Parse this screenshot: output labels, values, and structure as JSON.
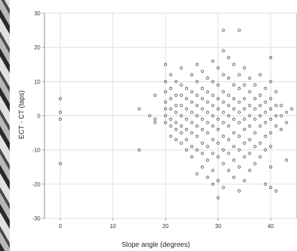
{
  "chart_data": {
    "type": "scatter",
    "title": "",
    "xlabel": "Slope angle (degrees)",
    "ylabel": "ECT - CT (taps)",
    "xlim": [
      -3,
      45
    ],
    "ylim": [
      -30,
      30
    ],
    "x_ticks": [
      "0",
      "10",
      "20",
      "30",
      "40"
    ],
    "y_ticks": [
      "-30",
      "-20",
      "-10",
      "0",
      "10",
      "20",
      "30"
    ],
    "grid": true,
    "marker": "hollow-circle",
    "marker_color": "#555555",
    "points": [
      [
        0,
        5
      ],
      [
        0,
        1
      ],
      [
        0,
        -1
      ],
      [
        0,
        -14
      ],
      [
        15,
        2
      ],
      [
        15,
        -10
      ],
      [
        17,
        0
      ],
      [
        18,
        6
      ],
      [
        18,
        -1
      ],
      [
        18,
        -2
      ],
      [
        20,
        15
      ],
      [
        20,
        10
      ],
      [
        20,
        7
      ],
      [
        20,
        4
      ],
      [
        20,
        2
      ],
      [
        20,
        0
      ],
      [
        20,
        -2
      ],
      [
        21,
        12
      ],
      [
        21,
        8
      ],
      [
        21,
        5
      ],
      [
        21,
        2
      ],
      [
        21,
        -1
      ],
      [
        21,
        -3
      ],
      [
        21,
        -6
      ],
      [
        22,
        10
      ],
      [
        22,
        6
      ],
      [
        22,
        3
      ],
      [
        22,
        1
      ],
      [
        22,
        -2
      ],
      [
        22,
        -4
      ],
      [
        22,
        -7
      ],
      [
        23,
        14
      ],
      [
        23,
        9
      ],
      [
        23,
        6
      ],
      [
        23,
        3
      ],
      [
        23,
        0
      ],
      [
        23,
        -3
      ],
      [
        23,
        -5
      ],
      [
        23,
        -8
      ],
      [
        24,
        8
      ],
      [
        24,
        5
      ],
      [
        24,
        2
      ],
      [
        24,
        -1
      ],
      [
        24,
        -4
      ],
      [
        24,
        -7
      ],
      [
        24,
        -10
      ],
      [
        25,
        12
      ],
      [
        25,
        7
      ],
      [
        25,
        4
      ],
      [
        25,
        1
      ],
      [
        25,
        -2
      ],
      [
        25,
        -5
      ],
      [
        25,
        -9
      ],
      [
        25,
        -12
      ],
      [
        26,
        15
      ],
      [
        26,
        10
      ],
      [
        26,
        6
      ],
      [
        26,
        3
      ],
      [
        26,
        0
      ],
      [
        26,
        -3
      ],
      [
        26,
        -6
      ],
      [
        26,
        -10
      ],
      [
        26,
        -17
      ],
      [
        27,
        13
      ],
      [
        27,
        8
      ],
      [
        27,
        5
      ],
      [
        27,
        2
      ],
      [
        27,
        -1
      ],
      [
        27,
        -4
      ],
      [
        27,
        -8
      ],
      [
        27,
        -11
      ],
      [
        27,
        -15
      ],
      [
        28,
        11
      ],
      [
        28,
        7
      ],
      [
        28,
        4
      ],
      [
        28,
        1
      ],
      [
        28,
        -2
      ],
      [
        28,
        -5
      ],
      [
        28,
        -9
      ],
      [
        28,
        -13
      ],
      [
        28,
        -18
      ],
      [
        29,
        16
      ],
      [
        29,
        10
      ],
      [
        29,
        6
      ],
      [
        29,
        3
      ],
      [
        29,
        0
      ],
      [
        29,
        -3
      ],
      [
        29,
        -7
      ],
      [
        29,
        -11
      ],
      [
        29,
        -16
      ],
      [
        29,
        -20
      ],
      [
        30,
        14
      ],
      [
        30,
        9
      ],
      [
        30,
        5
      ],
      [
        30,
        2
      ],
      [
        30,
        -1
      ],
      [
        30,
        -4
      ],
      [
        30,
        -8
      ],
      [
        30,
        -12
      ],
      [
        30,
        -19
      ],
      [
        30,
        -24
      ],
      [
        31,
        25
      ],
      [
        31,
        19
      ],
      [
        31,
        12
      ],
      [
        31,
        7
      ],
      [
        31,
        4
      ],
      [
        31,
        1
      ],
      [
        31,
        -2
      ],
      [
        31,
        -6
      ],
      [
        31,
        -10
      ],
      [
        31,
        -14
      ],
      [
        31,
        -21
      ],
      [
        32,
        17
      ],
      [
        32,
        11
      ],
      [
        32,
        6
      ],
      [
        32,
        3
      ],
      [
        32,
        0
      ],
      [
        32,
        -3
      ],
      [
        32,
        -7
      ],
      [
        32,
        -11
      ],
      [
        32,
        -16
      ],
      [
        33,
        15
      ],
      [
        33,
        9
      ],
      [
        33,
        5
      ],
      [
        33,
        2
      ],
      [
        33,
        -1
      ],
      [
        33,
        -5
      ],
      [
        33,
        -9
      ],
      [
        33,
        -13
      ],
      [
        33,
        -18
      ],
      [
        34,
        25
      ],
      [
        34,
        12
      ],
      [
        34,
        8
      ],
      [
        34,
        4
      ],
      [
        34,
        1
      ],
      [
        34,
        -2
      ],
      [
        34,
        -6
      ],
      [
        34,
        -10
      ],
      [
        34,
        -15
      ],
      [
        34,
        -22
      ],
      [
        35,
        14
      ],
      [
        35,
        9
      ],
      [
        35,
        5
      ],
      [
        35,
        2
      ],
      [
        35,
        -1
      ],
      [
        35,
        -4
      ],
      [
        35,
        -8
      ],
      [
        35,
        -12
      ],
      [
        35,
        -19
      ],
      [
        36,
        11
      ],
      [
        36,
        7
      ],
      [
        36,
        3
      ],
      [
        36,
        0
      ],
      [
        36,
        -3
      ],
      [
        36,
        -7
      ],
      [
        36,
        -11
      ],
      [
        36,
        -16
      ],
      [
        37,
        9
      ],
      [
        37,
        5
      ],
      [
        37,
        2
      ],
      [
        37,
        -1
      ],
      [
        37,
        -5
      ],
      [
        37,
        -9
      ],
      [
        37,
        -14
      ],
      [
        38,
        12
      ],
      [
        38,
        6
      ],
      [
        38,
        3
      ],
      [
        38,
        0
      ],
      [
        38,
        -3
      ],
      [
        38,
        -8
      ],
      [
        38,
        -12
      ],
      [
        39,
        8
      ],
      [
        39,
        4
      ],
      [
        39,
        1
      ],
      [
        39,
        -2
      ],
      [
        39,
        -6
      ],
      [
        39,
        -10
      ],
      [
        39,
        -20
      ],
      [
        40,
        17
      ],
      [
        40,
        10
      ],
      [
        40,
        5
      ],
      [
        40,
        2
      ],
      [
        40,
        -1
      ],
      [
        40,
        -5
      ],
      [
        40,
        -9
      ],
      [
        40,
        -15
      ],
      [
        40,
        -21
      ],
      [
        41,
        7
      ],
      [
        41,
        3
      ],
      [
        41,
        0
      ],
      [
        41,
        -3
      ],
      [
        41,
        -22
      ],
      [
        42,
        3
      ],
      [
        42,
        0
      ],
      [
        42,
        -4
      ],
      [
        43,
        1
      ],
      [
        43,
        -2
      ],
      [
        43,
        -13
      ],
      [
        44,
        2
      ]
    ]
  }
}
